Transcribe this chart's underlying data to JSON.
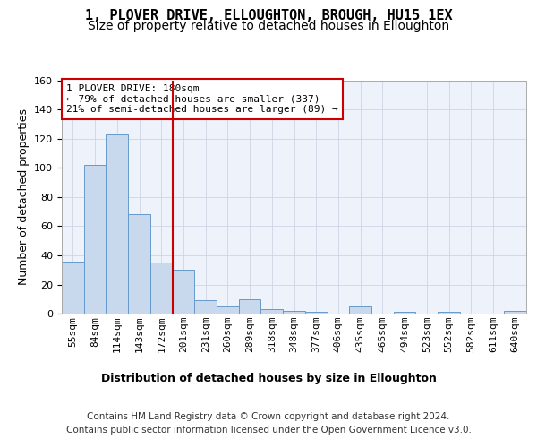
{
  "title": "1, PLOVER DRIVE, ELLOUGHTON, BROUGH, HU15 1EX",
  "subtitle": "Size of property relative to detached houses in Elloughton",
  "xlabel": "Distribution of detached houses by size in Elloughton",
  "ylabel": "Number of detached properties",
  "categories": [
    "55sqm",
    "84sqm",
    "114sqm",
    "143sqm",
    "172sqm",
    "201sqm",
    "231sqm",
    "260sqm",
    "289sqm",
    "318sqm",
    "348sqm",
    "377sqm",
    "406sqm",
    "435sqm",
    "465sqm",
    "494sqm",
    "523sqm",
    "552sqm",
    "582sqm",
    "611sqm",
    "640sqm"
  ],
  "values": [
    36,
    102,
    123,
    68,
    35,
    30,
    9,
    5,
    10,
    3,
    2,
    1,
    0,
    5,
    0,
    1,
    0,
    1,
    0,
    0,
    2
  ],
  "bar_color": "#c9d9ed",
  "bar_edge_color": "#6699cc",
  "vline_x": 4.5,
  "vline_color": "#cc0000",
  "annotation_text": "1 PLOVER DRIVE: 180sqm\n← 79% of detached houses are smaller (337)\n21% of semi-detached houses are larger (89) →",
  "annotation_box_color": "#cc0000",
  "ylim": [
    0,
    160
  ],
  "yticks": [
    0,
    20,
    40,
    60,
    80,
    100,
    120,
    140,
    160
  ],
  "footer": "Contains HM Land Registry data © Crown copyright and database right 2024.\nContains public sector information licensed under the Open Government Licence v3.0.",
  "title_fontsize": 11,
  "subtitle_fontsize": 10,
  "ylabel_fontsize": 9,
  "xlabel_fontsize": 9,
  "tick_fontsize": 8,
  "annotation_fontsize": 8,
  "footer_fontsize": 7.5,
  "plot_bg_color": "#eef2fa"
}
